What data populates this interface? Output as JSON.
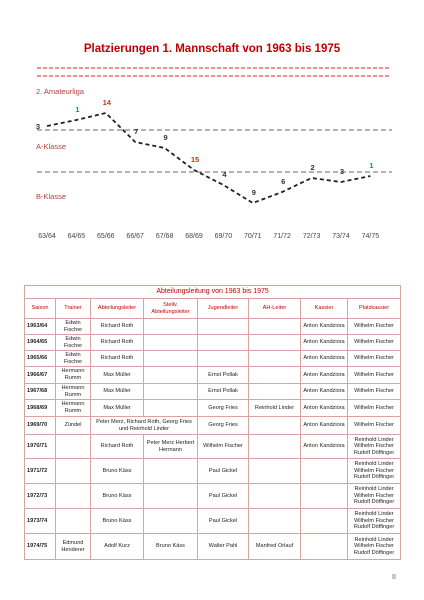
{
  "title": "Platzierungen 1. Mannschaft von 1963 bis 1975",
  "leagues": [
    "2. Amateurliga",
    "A-Klasse",
    "B-Klasse"
  ],
  "placements": [
    {
      "season": "63/64",
      "place": 3,
      "color": "#333333"
    },
    {
      "season": "64/65",
      "place": 1,
      "color": "#00a04a"
    },
    {
      "season": "65/66",
      "place": 14,
      "color": "#e0261b"
    },
    {
      "season": "66/67",
      "place": 7,
      "color": "#333333"
    },
    {
      "season": "67/68",
      "place": 9,
      "color": "#333333"
    },
    {
      "season": "68/69",
      "place": 15,
      "color": "#e0261b"
    },
    {
      "season": "69/70",
      "place": 4,
      "color": "#333333"
    },
    {
      "season": "70/71",
      "place": 9,
      "color": "#333333"
    },
    {
      "season": "71/72",
      "place": 6,
      "color": "#333333"
    },
    {
      "season": "72/73",
      "place": 2,
      "color": "#333333"
    },
    {
      "season": "73/74",
      "place": 3,
      "color": "#333333"
    },
    {
      "season": "74/75",
      "place": 1,
      "color": "#00a04a"
    }
  ],
  "table": {
    "title": "Abteilungsleitung von 1963 bis 1975",
    "header": [
      "Saison",
      "Trainer",
      "Abteilungsleiter",
      "Stellv. Abteilungsleiter",
      "Jugendleiter",
      "AH-Leiter",
      "Kassier",
      "Platzkassier"
    ],
    "rows": [
      [
        "1963/64",
        "Edwin Fischer",
        "Richard Roth",
        null,
        null,
        null,
        "Anton Kandziora",
        "Wilhelm Fischer"
      ],
      [
        "1964/65",
        "Edwin Fischer",
        "Richard Roth",
        null,
        null,
        null,
        "Anton Kandziora",
        "Wilhelm Fischer"
      ],
      [
        "1965/66",
        "Edwin Fischer",
        "Richard Roth",
        null,
        null,
        null,
        "Anton Kandziora",
        "Wilhelm Fischer"
      ],
      [
        "1966/67",
        "Hermann Rumm",
        "Max Müller",
        null,
        "Ernst Pollak",
        null,
        "Anton Kandziora",
        "Wilhelm Fischer"
      ],
      [
        "1967/68",
        "Hermann Rumm",
        "Max Müller",
        null,
        "Ernst Pollak",
        null,
        "Anton Kandziora",
        "Wilhelm Fischer"
      ],
      [
        "1968/69",
        "Hermann Rumm",
        "Max Müller",
        null,
        "Georg Fries",
        "Reinhold Linder",
        "Anton Kandziora",
        "Wilhelm Fischer"
      ],
      [
        "1969/70",
        "Zündel",
        "Peter Merz, Richard Roth, Georg Fries und Reinhold Linder",
        null,
        "Georg Fries",
        null,
        "Anton Kandziora",
        "Wilhelm Fischer"
      ],
      [
        "1970/71",
        null,
        "Richard Roth",
        "Peter Merz Herbert Hermann",
        "Wilhelm Fischer",
        null,
        "Anton Kandziora",
        "Reinhold Linder Wilhelm Fischer Rudolf Döffinger"
      ],
      [
        "1971/72",
        null,
        "Bruno Käss",
        null,
        "Paul Gickel",
        null,
        null,
        "Reinhold Linder Wilhelm Fischer Rudolf Döffinger"
      ],
      [
        "1972/73",
        null,
        "Bruno Käss",
        null,
        "Paul Gickel",
        null,
        null,
        "Reinhold Linder Wilhelm Fischer Rudolf Döffinger"
      ],
      [
        "1973/74",
        null,
        "Bruno Käss",
        null,
        "Paul Gickel",
        null,
        null,
        "Reinhold Linder Wilhelm Fischer Rudolf Döffinger"
      ],
      [
        "1974/75",
        "Edmund Henderer",
        "Adolf Kurz",
        "Bruno Käss",
        "Walter Pahl",
        "Manfred Orlauf",
        null,
        "Reinhold Linder Wilhelm Fischer Rudolf Döffinger"
      ]
    ]
  },
  "page_number": "II"
}
